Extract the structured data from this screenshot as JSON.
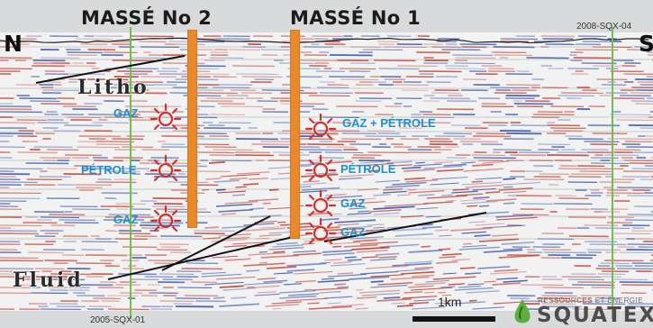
{
  "wells": [
    {
      "title": "MASSÉ No 2"
    },
    {
      "title": "MASSÉ No 1"
    }
  ],
  "lines": {
    "top_right": "2008-SQX-04",
    "bottom_left": "2005-SQX-01"
  },
  "compass": {
    "left": "N",
    "right": "S"
  },
  "interpretation": {
    "upper": "Litho",
    "lower": "Fluid"
  },
  "shows": {
    "well2": [
      "GAZ",
      "PÉTROLE",
      "GAZ"
    ],
    "well1": [
      "GAZ + PÉTROLE",
      "PÉTROLE",
      "GAZ",
      "GAZ"
    ]
  },
  "scale": {
    "label": "1km"
  },
  "logo": {
    "tagline": "RESSOURCES ET ÉNERGIE",
    "name": "SQUATEX"
  },
  "colors": {
    "well_bar": "#e8892e",
    "show_label": "#1a8fd1",
    "show_icon": "#d0312d",
    "seismic_red": "#c0392b",
    "seismic_blue": "#2f4fa8",
    "line_marker": "#6fbf4a"
  },
  "icons": {
    "show": "gas-burst-icon",
    "logo": "oil-drop-icon"
  }
}
